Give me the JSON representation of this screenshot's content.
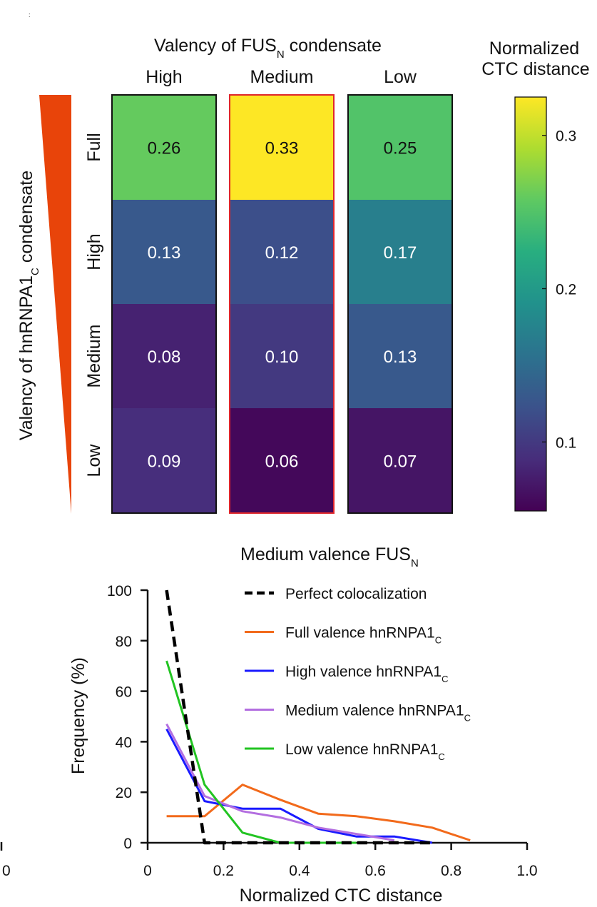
{
  "heatmap": {
    "col_header": {
      "main": "Valency of FUS",
      "sub": "N",
      "tail": " condensate"
    },
    "row_header": {
      "main": "Valency of hnRNPA1",
      "sub": "C",
      "tail": " condensate"
    },
    "columns": [
      "High",
      "Medium",
      "Low"
    ],
    "rows": [
      "Full",
      "High",
      "Medium",
      "Low"
    ],
    "highlighted_column": "Medium",
    "colorbar": {
      "title_line1": "Normalized",
      "title_line2": "CTC distance",
      "ticks": [
        "0.3",
        "0.2",
        "0.1"
      ],
      "range": [
        0.055,
        0.325
      ]
    }
  },
  "line": {
    "title": {
      "main": "Medium valence FUS",
      "sub": "N"
    },
    "legend_sub": "C",
    "x_ticks": [
      "0",
      "0.2",
      "0.4",
      "0.6",
      "0.8",
      "1.0"
    ],
    "y_ticks": [
      "0",
      "20",
      "40",
      "60",
      "80",
      "100"
    ]
  },
  "chart_data": [
    {
      "type": "heatmap",
      "title": "Valency of FUSN condensate",
      "xlabel": "Valency of FUSN condensate",
      "ylabel": "Valency of hnRNPA1C condensate",
      "x_categories": [
        "High",
        "Medium",
        "Low"
      ],
      "y_categories": [
        "Full",
        "High",
        "Medium",
        "Low"
      ],
      "values": [
        [
          "0.26",
          "0.33",
          "0.25"
        ],
        [
          "0.13",
          "0.12",
          "0.17"
        ],
        [
          "0.08",
          "0.10",
          "0.13"
        ],
        [
          "0.09",
          "0.06",
          "0.07"
        ]
      ],
      "colorbar_label": "Normalized CTC distance",
      "colorbar_range": [
        0.055,
        0.325
      ]
    },
    {
      "type": "line",
      "title": "Medium valence FUSN",
      "xlabel": "Normalized CTC distance",
      "ylabel": "Frequency (%)",
      "xlim": [
        0,
        1.0
      ],
      "ylim": [
        0,
        100
      ],
      "series": [
        {
          "name": "Perfect colocalization",
          "legend_main": "Perfect colocalization",
          "color": "#000000",
          "dashed": true,
          "x": [
            0.05,
            0.15,
            0.25,
            0.35,
            0.45,
            0.55,
            0.65,
            0.75
          ],
          "y": [
            100,
            0,
            0,
            0,
            0,
            0,
            0,
            0
          ]
        },
        {
          "name": "Full valence hnRNPA1C",
          "legend_main": "Full valence hnRNPA1",
          "color": "#f26a1b",
          "dashed": false,
          "x": [
            0.05,
            0.15,
            0.25,
            0.35,
            0.45,
            0.55,
            0.65,
            0.75,
            0.85
          ],
          "y": [
            10.5,
            10.5,
            23,
            17,
            11.5,
            10.5,
            8.5,
            6,
            1
          ]
        },
        {
          "name": "High valence hnRNPA1C",
          "legend_main": "High valence hnRNPA1",
          "color": "#1a1aff",
          "dashed": false,
          "x": [
            0.05,
            0.15,
            0.25,
            0.35,
            0.45,
            0.55,
            0.65,
            0.75
          ],
          "y": [
            45,
            16.5,
            13.5,
            13.5,
            5.5,
            2.5,
            2.5,
            0
          ]
        },
        {
          "name": "Medium valence hnRNPA1C",
          "legend_main": "Medium valence hnRNPA1",
          "color": "#b36ee0",
          "dashed": false,
          "x": [
            0.05,
            0.15,
            0.25,
            0.35,
            0.45,
            0.55,
            0.65
          ],
          "y": [
            47,
            18.5,
            12.5,
            10,
            6,
            3.5,
            1
          ]
        },
        {
          "name": "Low valence hnRNPA1C",
          "legend_main": "Low valence hnRNPA1",
          "color": "#22c422",
          "dashed": false,
          "x": [
            0.05,
            0.15,
            0.25,
            0.35,
            0.45,
            0.55
          ],
          "y": [
            72,
            23,
            4,
            0,
            0,
            0
          ]
        }
      ]
    }
  ]
}
